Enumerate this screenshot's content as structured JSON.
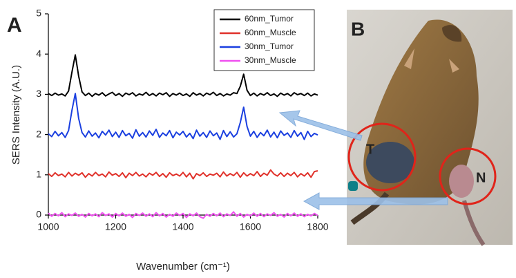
{
  "chart_data": {
    "type": "line",
    "panel_label": "A",
    "xlabel": "Wavenumber (cm⁻¹)",
    "ylabel": "SERS Intensity (A.U.)",
    "xlim": [
      1000,
      1800
    ],
    "ylim": [
      0,
      5
    ],
    "xticks": [
      1000,
      1200,
      1400,
      1600,
      1800
    ],
    "yticks": [
      0,
      1,
      2,
      3,
      4,
      5
    ],
    "legend": "upper right",
    "x": [
      1000,
      1010,
      1020,
      1030,
      1040,
      1050,
      1060,
      1070,
      1080,
      1090,
      1100,
      1110,
      1120,
      1130,
      1140,
      1150,
      1160,
      1170,
      1180,
      1190,
      1200,
      1210,
      1220,
      1230,
      1240,
      1250,
      1260,
      1270,
      1280,
      1290,
      1300,
      1310,
      1320,
      1330,
      1340,
      1350,
      1360,
      1370,
      1380,
      1390,
      1400,
      1410,
      1420,
      1430,
      1440,
      1450,
      1460,
      1470,
      1480,
      1490,
      1500,
      1510,
      1520,
      1530,
      1540,
      1550,
      1560,
      1570,
      1580,
      1590,
      1600,
      1610,
      1620,
      1630,
      1640,
      1650,
      1660,
      1670,
      1680,
      1690,
      1700,
      1710,
      1720,
      1730,
      1740,
      1750,
      1760,
      1770,
      1780,
      1790,
      1800
    ],
    "series": [
      {
        "name": "60nm_Tumor",
        "color": "#000000",
        "values": [
          3.02,
          2.97,
          3.03,
          2.98,
          3.01,
          2.96,
          3.08,
          3.55,
          3.98,
          3.45,
          3.06,
          2.97,
          3.03,
          2.95,
          3.02,
          2.98,
          3.04,
          2.96,
          3.01,
          3.05,
          2.97,
          3.02,
          2.95,
          3.03,
          2.99,
          3.04,
          2.96,
          3.01,
          2.98,
          3.05,
          2.97,
          3.02,
          2.96,
          3.03,
          2.99,
          3.04,
          2.95,
          3.02,
          2.98,
          3.03,
          2.97,
          3.01,
          2.95,
          3.04,
          2.98,
          3.02,
          2.96,
          3.03,
          2.99,
          3.05,
          2.97,
          3.02,
          2.96,
          3.01,
          2.98,
          3.04,
          3.02,
          3.2,
          3.5,
          3.1,
          2.97,
          3.03,
          2.96,
          3.02,
          2.98,
          3.04,
          2.97,
          3.01,
          2.95,
          3.03,
          2.98,
          3.02,
          2.96,
          3.04,
          2.99,
          3.02,
          2.97,
          3.03,
          2.96,
          3.01,
          2.98
        ]
      },
      {
        "name": "60nm_Muscle",
        "color": "#e0312a",
        "values": [
          1.03,
          0.96,
          1.05,
          0.98,
          1.02,
          0.95,
          1.06,
          0.97,
          1.04,
          0.99,
          1.05,
          0.94,
          1.03,
          0.97,
          1.06,
          0.98,
          1.02,
          0.95,
          1.07,
          0.99,
          1.03,
          0.96,
          1.05,
          0.93,
          1.04,
          0.98,
          1.06,
          0.97,
          1.02,
          0.95,
          1.04,
          0.99,
          1.06,
          0.96,
          1.03,
          0.94,
          1.05,
          0.98,
          1.02,
          0.97,
          1.06,
          0.95,
          1.04,
          0.9,
          1.03,
          0.98,
          1.05,
          0.96,
          1.02,
          0.99,
          1.04,
          0.95,
          1.07,
          0.97,
          1.03,
          0.98,
          1.06,
          0.94,
          1.05,
          0.97,
          1.03,
          0.98,
          1.08,
          0.96,
          1.04,
          0.99,
          1.12,
          1.02,
          0.97,
          1.05,
          0.96,
          1.04,
          0.98,
          1.06,
          0.95,
          1.03,
          0.97,
          1.05,
          0.94,
          1.08,
          1.1
        ]
      },
      {
        "name": "30nm_Tumor",
        "color": "#1a3fe0",
        "values": [
          2.02,
          1.95,
          2.08,
          1.97,
          2.05,
          1.93,
          2.1,
          2.6,
          3.02,
          2.4,
          2.05,
          1.94,
          2.09,
          1.96,
          2.04,
          1.92,
          2.08,
          1.99,
          2.11,
          1.95,
          2.06,
          1.93,
          2.1,
          1.97,
          2.03,
          1.91,
          2.12,
          1.96,
          2.05,
          1.94,
          2.09,
          1.98,
          2.13,
          1.93,
          2.04,
          1.97,
          2.1,
          1.92,
          2.06,
          1.99,
          2.08,
          1.94,
          2.03,
          1.9,
          2.11,
          1.96,
          2.05,
          1.93,
          2.09,
          1.97,
          2.04,
          1.88,
          2.1,
          1.95,
          2.07,
          1.94,
          2.02,
          2.3,
          2.68,
          2.2,
          1.96,
          2.08,
          1.93,
          2.05,
          1.97,
          2.11,
          1.94,
          2.06,
          1.92,
          2.09,
          1.98,
          2.04,
          1.93,
          2.1,
          1.96,
          2.05,
          1.88,
          2.08,
          1.95,
          2.03,
          1.99
        ]
      },
      {
        "name": "30nm_Muscle",
        "color": "#f050f0",
        "values": [
          0.05,
          -0.03,
          0.04,
          -0.02,
          0.06,
          -0.04,
          0.03,
          -0.01,
          0.05,
          -0.03,
          0.02,
          -0.05,
          0.04,
          -0.02,
          0.03,
          -0.04,
          0.06,
          -0.01,
          0.03,
          -0.05,
          0.04,
          -0.02,
          0.05,
          -0.03,
          0.02,
          -0.06,
          0.04,
          -0.01,
          0.05,
          -0.03,
          0.03,
          -0.04,
          0.06,
          -0.02,
          0.04,
          -0.05,
          0.02,
          -0.03,
          0.05,
          -0.01,
          0.04,
          -0.06,
          0.03,
          -0.02,
          0.05,
          -0.04,
          -0.08,
          0.02,
          -0.03,
          0.04,
          -0.02,
          0.05,
          -0.04,
          0.03,
          -0.01,
          0.08,
          -0.03,
          0.04,
          -0.05,
          0.02,
          -0.02,
          0.05,
          -0.03,
          0.04,
          -0.04,
          0.03,
          -0.01,
          0.06,
          -0.03,
          0.02,
          -0.05,
          0.04,
          -0.02,
          0.05,
          -0.03,
          0.03,
          -0.04,
          0.02,
          -0.02,
          0.04,
          -0.01
        ]
      }
    ]
  },
  "photo": {
    "panel_label": "B",
    "markers": [
      "T",
      "N"
    ]
  }
}
